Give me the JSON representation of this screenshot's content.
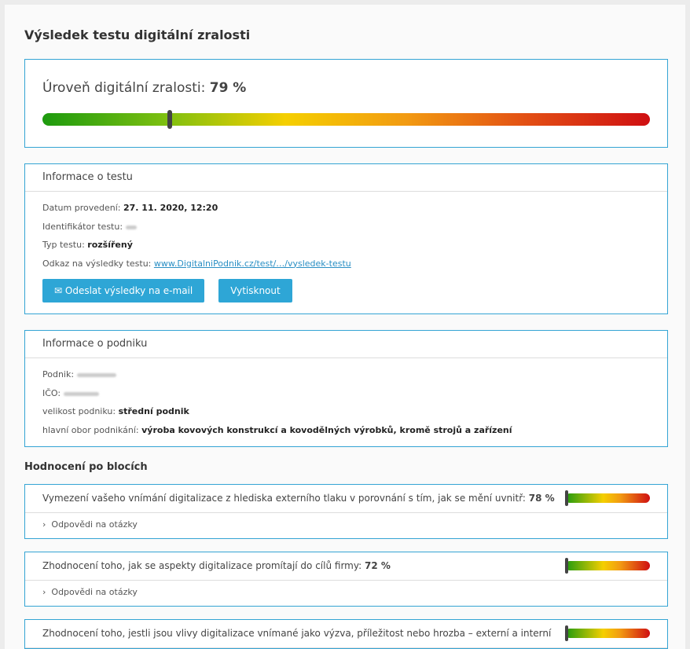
{
  "title": "Výsledek testu digitální zralosti",
  "level": {
    "label": "Úroveň digitální zralosti:",
    "value": "79 %",
    "marker_percent": 21
  },
  "test_info": {
    "header": "Informace o testu",
    "date_label": "Datum provedení:",
    "date": "27. 11. 2020, 12:20",
    "id_label": "Identifikátor testu:",
    "type_label": "Typ testu:",
    "type": "rozšířený",
    "link_label": "Odkaz na výsledky testu:",
    "link": "www.DigitalniPodnik.cz/test/…/vysledek-testu",
    "email_button": "Odeslat výsledky na e-mail",
    "print_button": "Vytisknout"
  },
  "company_info": {
    "header": "Informace o podniku",
    "company_label": "Podnik:",
    "ico_label": "IČO:",
    "size_label": "velikost podniku:",
    "size": "střední podnik",
    "field_label": "hlavní obor podnikání:",
    "field": "výroba kovových konstrukcí a kovodělných výrobků, kromě strojů a zařízení"
  },
  "blocks_title": "Hodnocení po blocích",
  "blocks": [
    {
      "text": "Vymezení vašeho vnímání digitalizace z hlediska externího tlaku v porovnání s tím, jak se mění uvnitř:",
      "value": "78 %",
      "answers": "Odpovědi na otázky",
      "marker_percent": 0
    },
    {
      "text": "Zhodnocení toho, jak se aspekty digitalizace promítají do cílů firmy:",
      "value": "72 %",
      "answers": "Odpovědi na otázky",
      "marker_percent": 0
    },
    {
      "text": "Zhodnocení toho, jestli jsou vlivy digitalizace vnímané jako výzva, příležitost nebo hrozba – externí a interní",
      "value": "",
      "answers": "",
      "marker_percent": 0
    }
  ]
}
